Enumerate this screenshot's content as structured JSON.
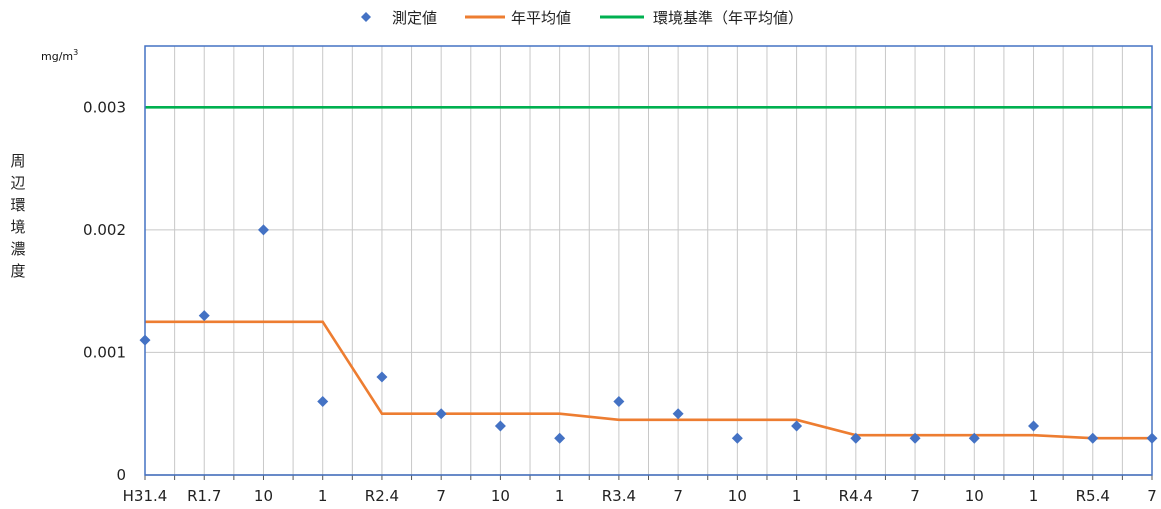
{
  "chart_data": {
    "type": "line",
    "title": "",
    "ylabel": "周辺環境濃度",
    "y_unit": "mg/m",
    "y_unit_sup": "3",
    "ylim": [
      0,
      0.0035
    ],
    "yticks": [
      {
        "value": 0,
        "label": "0"
      },
      {
        "value": 0.001,
        "label": "0.001"
      },
      {
        "value": 0.002,
        "label": "0.002"
      },
      {
        "value": 0.003,
        "label": "0.003"
      }
    ],
    "grid": true,
    "legend_position": "top",
    "categories": [
      "H31.4",
      "",
      "R1.7",
      "",
      "10",
      "",
      "1",
      "",
      "R2.4",
      "",
      "7",
      "",
      "10",
      "",
      "1",
      "",
      "R3.4",
      "",
      "7",
      "",
      "10",
      "",
      "1",
      "",
      "R4.4",
      "",
      "7",
      "",
      "10",
      "",
      "1",
      "",
      "R5.4",
      "",
      "7"
    ],
    "series": [
      {
        "name": "測定値",
        "kind": "scatter",
        "color": "#4472c4",
        "marker": "diamond",
        "points": [
          {
            "x": 0,
            "y": 0.0011
          },
          {
            "x": 2,
            "y": 0.0013
          },
          {
            "x": 4,
            "y": 0.002
          },
          {
            "x": 6,
            "y": 0.0006
          },
          {
            "x": 8,
            "y": 0.0008
          },
          {
            "x": 10,
            "y": 0.0005
          },
          {
            "x": 12,
            "y": 0.0004
          },
          {
            "x": 14,
            "y": 0.0003
          },
          {
            "x": 16,
            "y": 0.0006
          },
          {
            "x": 18,
            "y": 0.0005
          },
          {
            "x": 20,
            "y": 0.0003
          },
          {
            "x": 22,
            "y": 0.0004
          },
          {
            "x": 24,
            "y": 0.0003
          },
          {
            "x": 26,
            "y": 0.0003
          },
          {
            "x": 28,
            "y": 0.0003
          },
          {
            "x": 30,
            "y": 0.0004
          },
          {
            "x": 32,
            "y": 0.0003
          },
          {
            "x": 34,
            "y": 0.0003
          }
        ]
      },
      {
        "name": "年平均値",
        "kind": "line",
        "color": "#ed7d31",
        "points": [
          {
            "x": 0,
            "y": 0.00125
          },
          {
            "x": 6,
            "y": 0.00125
          },
          {
            "x": 8,
            "y": 0.0005
          },
          {
            "x": 14,
            "y": 0.0005
          },
          {
            "x": 16,
            "y": 0.00045
          },
          {
            "x": 22,
            "y": 0.00045
          },
          {
            "x": 24,
            "y": 0.000325
          },
          {
            "x": 30,
            "y": 0.000325
          },
          {
            "x": 32,
            "y": 0.0003
          },
          {
            "x": 34,
            "y": 0.0003
          }
        ]
      },
      {
        "name": "環境基準（年平均値）",
        "kind": "line",
        "color": "#00b050",
        "points": [
          {
            "x": 0,
            "y": 0.003
          },
          {
            "x": 34,
            "y": 0.003
          }
        ]
      }
    ]
  }
}
